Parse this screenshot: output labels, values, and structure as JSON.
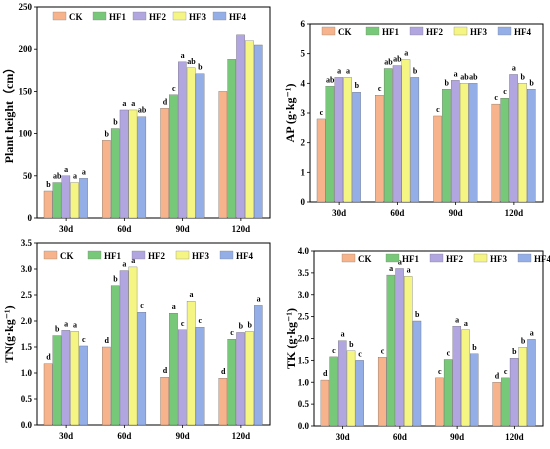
{
  "colors": {
    "CK": "#f7b48c",
    "HF1": "#78c879",
    "HF2": "#b2a6e0",
    "HF3": "#f5f584",
    "HF4": "#94aee8"
  },
  "chart_data": [
    {
      "type": "bar",
      "ylabel": "Plant height（cm）",
      "ylim": [
        0,
        250
      ],
      "yticks": [
        0,
        50,
        100,
        150,
        200,
        250
      ],
      "categories": [
        "30d",
        "60d",
        "90d",
        "120d"
      ],
      "legend": [
        "CK",
        "HF1",
        "HF2",
        "HF3",
        "HF4"
      ],
      "series": [
        {
          "name": "CK",
          "values": [
            32,
            92,
            130,
            150
          ]
        },
        {
          "name": "HF1",
          "values": [
            42,
            106,
            146,
            188
          ]
        },
        {
          "name": "HF2",
          "values": [
            50,
            128,
            185,
            217
          ]
        },
        {
          "name": "HF3",
          "values": [
            42,
            128,
            178,
            210
          ]
        },
        {
          "name": "HF4",
          "values": [
            47,
            120,
            171,
            205
          ]
        }
      ],
      "letters": [
        [
          "b",
          "ab",
          "a",
          "a",
          "a"
        ],
        [
          "b",
          "b",
          "a",
          "a",
          "ab"
        ],
        [
          "d",
          "c",
          "a",
          "ab",
          "b"
        ],
        [
          "",
          "",
          "",
          "",
          ""
        ]
      ]
    },
    {
      "type": "bar",
      "ylabel": "AP (g·kg⁻¹)",
      "ylim": [
        0,
        6
      ],
      "yticks": [
        0,
        1,
        2,
        3,
        4,
        5,
        6
      ],
      "categories": [
        "30d",
        "60d",
        "90d",
        "120d"
      ],
      "legend": [
        "CK",
        "HF1",
        "HF2",
        "HF3",
        "HF4"
      ],
      "series": [
        {
          "name": "CK",
          "values": [
            2.8,
            3.6,
            2.9,
            3.3
          ]
        },
        {
          "name": "HF1",
          "values": [
            3.9,
            4.5,
            3.8,
            3.5
          ]
        },
        {
          "name": "HF2",
          "values": [
            4.2,
            4.6,
            4.1,
            4.3
          ]
        },
        {
          "name": "HF3",
          "values": [
            4.2,
            4.8,
            4.0,
            4.0
          ]
        },
        {
          "name": "HF4",
          "values": [
            3.7,
            4.2,
            4.0,
            3.8
          ]
        }
      ],
      "letters": [
        [
          "c",
          "ab",
          "a",
          "a",
          "b"
        ],
        [
          "c",
          "ab",
          "ab",
          "a",
          "b"
        ],
        [
          "c",
          "b",
          "a",
          "ab",
          "ab"
        ],
        [
          "c",
          "c",
          "a",
          "b",
          "b"
        ]
      ]
    },
    {
      "type": "bar",
      "ylabel": "TN(g·kg⁻¹)",
      "ylim": [
        0,
        3.5
      ],
      "yticks": [
        0.0,
        0.5,
        1.0,
        1.5,
        2.0,
        2.5,
        3.0,
        3.5
      ],
      "categories": [
        "30d",
        "60d",
        "90d",
        "120d"
      ],
      "legend": [
        "CK",
        "HF1",
        "HF2",
        "HF3",
        "HF4"
      ],
      "series": [
        {
          "name": "CK",
          "values": [
            1.18,
            1.5,
            0.92,
            0.9
          ]
        },
        {
          "name": "HF1",
          "values": [
            1.72,
            2.68,
            2.15,
            1.65
          ]
        },
        {
          "name": "HF2",
          "values": [
            1.82,
            2.97,
            1.83,
            1.78
          ]
        },
        {
          "name": "HF3",
          "values": [
            1.8,
            3.04,
            2.38,
            1.8
          ]
        },
        {
          "name": "HF4",
          "values": [
            1.52,
            2.17,
            1.88,
            2.3
          ]
        }
      ],
      "letters": [
        [
          "d",
          "b",
          "a",
          "a",
          "c"
        ],
        [
          "d",
          "b",
          "a",
          "a",
          "c"
        ],
        [
          "d",
          "a",
          "c",
          "a",
          "c"
        ],
        [
          "d",
          "c",
          "b",
          "b",
          "a"
        ]
      ]
    },
    {
      "type": "bar",
      "ylabel": "TK (g·kg⁻¹)",
      "ylim": [
        0,
        4.0
      ],
      "yticks": [
        0.0,
        0.5,
        1.0,
        1.5,
        2.0,
        2.5,
        3.0,
        3.5,
        4.0
      ],
      "categories": [
        "30d",
        "60d",
        "90d",
        "120d"
      ],
      "legend": [
        "CK",
        "HF1",
        "HF2",
        "HF3",
        "HF4"
      ],
      "series": [
        {
          "name": "CK",
          "values": [
            1.05,
            1.57,
            1.1,
            1.0
          ]
        },
        {
          "name": "HF1",
          "values": [
            1.58,
            3.45,
            1.52,
            1.1
          ]
        },
        {
          "name": "HF2",
          "values": [
            1.95,
            3.6,
            2.28,
            1.55
          ]
        },
        {
          "name": "HF3",
          "values": [
            1.72,
            3.42,
            2.2,
            1.8
          ]
        },
        {
          "name": "HF4",
          "values": [
            1.5,
            2.4,
            1.65,
            1.98
          ]
        }
      ],
      "letters": [
        [
          "d",
          "c",
          "a",
          "b",
          "c"
        ],
        [
          "c",
          "a",
          "a",
          "a",
          "b"
        ],
        [
          "c",
          "c",
          "a",
          "a",
          "b"
        ],
        [
          "d",
          "c",
          "b",
          "b",
          "a"
        ]
      ]
    }
  ]
}
